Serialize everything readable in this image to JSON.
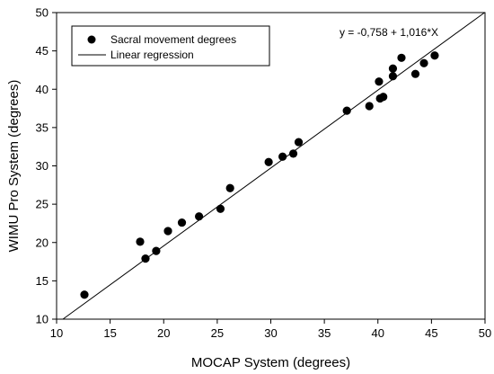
{
  "chart_data": {
    "type": "scatter",
    "title": "",
    "xlabel": "MOCAP System (degrees)",
    "ylabel": "WIMU Pro System (degrees)",
    "xlim": [
      10,
      50
    ],
    "ylim": [
      10,
      50
    ],
    "x_ticks": [
      "10",
      "15",
      "20",
      "25",
      "30",
      "35",
      "40",
      "45",
      "50"
    ],
    "y_ticks": [
      "10",
      "15",
      "20",
      "25",
      "30",
      "35",
      "40",
      "45",
      "50"
    ],
    "grid": false,
    "legend_position": "top-left",
    "legend": [
      {
        "label": "Sacral movement degrees",
        "marker": "circle"
      },
      {
        "label": "Linear regression",
        "marker": "line"
      }
    ],
    "equation": "y = -0,758 + 1,016*X",
    "regression": {
      "intercept": -0.758,
      "slope": 1.016
    },
    "series": [
      {
        "name": "Sacral movement degrees",
        "color": "#000000",
        "points": [
          [
            12.6,
            13.2
          ],
          [
            17.8,
            20.1
          ],
          [
            18.3,
            17.9
          ],
          [
            19.3,
            18.9
          ],
          [
            20.4,
            21.5
          ],
          [
            21.7,
            22.6
          ],
          [
            23.3,
            23.4
          ],
          [
            25.3,
            24.4
          ],
          [
            26.2,
            27.1
          ],
          [
            29.8,
            30.5
          ],
          [
            31.1,
            31.2
          ],
          [
            32.1,
            31.6
          ],
          [
            32.6,
            33.1
          ],
          [
            37.1,
            37.2
          ],
          [
            39.2,
            37.8
          ],
          [
            40.1,
            41.0
          ],
          [
            40.2,
            38.8
          ],
          [
            40.5,
            39.0
          ],
          [
            41.4,
            42.7
          ],
          [
            41.4,
            41.7
          ],
          [
            42.2,
            44.1
          ],
          [
            43.5,
            42.0
          ],
          [
            44.3,
            43.4
          ],
          [
            45.3,
            44.4
          ]
        ]
      }
    ]
  }
}
